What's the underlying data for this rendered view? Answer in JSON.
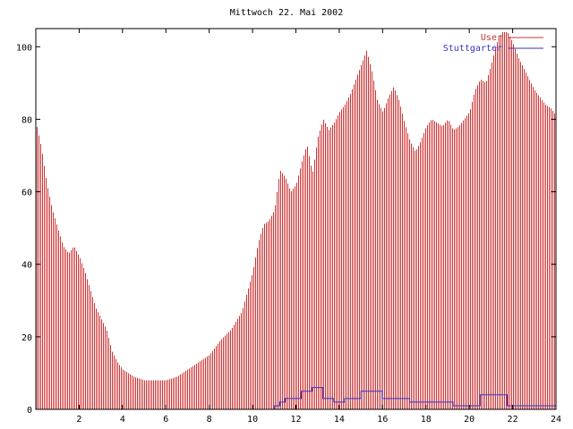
{
  "chart_data": {
    "type": "bar",
    "title": "Mittwoch 22. Mai 2002",
    "xlabel": "",
    "ylabel": "",
    "xlim": [
      0,
      24
    ],
    "ylim": [
      0,
      105
    ],
    "xticks": [
      2,
      4,
      6,
      8,
      10,
      12,
      14,
      16,
      18,
      20,
      22,
      24
    ],
    "yticks": [
      0,
      20,
      40,
      60,
      80,
      100
    ],
    "grid": false,
    "legend_placement": "top-right",
    "series": [
      {
        "name": "User",
        "type": "bar",
        "color": "#cc3333",
        "anchors": [
          [
            0.0,
            79
          ],
          [
            0.25,
            72
          ],
          [
            0.5,
            62
          ],
          [
            0.75,
            55
          ],
          [
            1.0,
            50
          ],
          [
            1.25,
            45
          ],
          [
            1.5,
            43
          ],
          [
            1.75,
            45
          ],
          [
            2.0,
            42
          ],
          [
            2.25,
            38
          ],
          [
            2.5,
            33
          ],
          [
            2.75,
            28
          ],
          [
            3.0,
            25
          ],
          [
            3.25,
            22
          ],
          [
            3.5,
            16
          ],
          [
            3.75,
            13
          ],
          [
            4.0,
            11
          ],
          [
            4.5,
            9
          ],
          [
            5.0,
            8
          ],
          [
            5.5,
            8
          ],
          [
            6.0,
            8
          ],
          [
            6.5,
            9
          ],
          [
            7.0,
            11
          ],
          [
            7.5,
            13
          ],
          [
            8.0,
            15
          ],
          [
            8.5,
            19
          ],
          [
            9.0,
            22
          ],
          [
            9.5,
            27
          ],
          [
            10.0,
            38
          ],
          [
            10.25,
            46
          ],
          [
            10.5,
            51
          ],
          [
            10.75,
            52
          ],
          [
            11.0,
            55
          ],
          [
            11.25,
            66
          ],
          [
            11.5,
            64
          ],
          [
            11.75,
            60
          ],
          [
            12.0,
            62
          ],
          [
            12.25,
            68
          ],
          [
            12.5,
            73
          ],
          [
            12.75,
            65
          ],
          [
            13.0,
            75
          ],
          [
            13.25,
            80
          ],
          [
            13.5,
            77
          ],
          [
            13.75,
            79
          ],
          [
            14.0,
            82
          ],
          [
            14.25,
            84
          ],
          [
            14.5,
            87
          ],
          [
            14.75,
            91
          ],
          [
            15.0,
            95
          ],
          [
            15.25,
            99
          ],
          [
            15.5,
            93
          ],
          [
            15.75,
            85
          ],
          [
            16.0,
            82
          ],
          [
            16.25,
            86
          ],
          [
            16.5,
            89
          ],
          [
            16.75,
            85
          ],
          [
            17.0,
            79
          ],
          [
            17.25,
            74
          ],
          [
            17.5,
            71
          ],
          [
            17.75,
            74
          ],
          [
            18.0,
            78
          ],
          [
            18.25,
            80
          ],
          [
            18.5,
            79
          ],
          [
            18.75,
            78
          ],
          [
            19.0,
            80
          ],
          [
            19.25,
            77
          ],
          [
            19.5,
            78
          ],
          [
            19.75,
            80
          ],
          [
            20.0,
            82
          ],
          [
            20.25,
            88
          ],
          [
            20.5,
            91
          ],
          [
            20.75,
            90
          ],
          [
            21.0,
            95
          ],
          [
            21.25,
            101
          ],
          [
            21.5,
            104
          ],
          [
            21.75,
            104
          ],
          [
            22.0,
            101
          ],
          [
            22.25,
            97
          ],
          [
            22.5,
            94
          ],
          [
            22.75,
            91
          ],
          [
            23.0,
            88
          ],
          [
            23.25,
            86
          ],
          [
            23.5,
            84
          ],
          [
            23.75,
            83
          ],
          [
            24.0,
            81
          ]
        ]
      },
      {
        "name": "Stuttgarter",
        "type": "step",
        "color": "#3333cc",
        "steps": [
          [
            0.0,
            0
          ],
          [
            11.0,
            1
          ],
          [
            11.25,
            2
          ],
          [
            11.5,
            3
          ],
          [
            12.25,
            5
          ],
          [
            12.75,
            6
          ],
          [
            13.25,
            3
          ],
          [
            13.75,
            2
          ],
          [
            14.25,
            3
          ],
          [
            15.0,
            5
          ],
          [
            16.0,
            3
          ],
          [
            17.25,
            2
          ],
          [
            18.75,
            2
          ],
          [
            19.25,
            1
          ],
          [
            20.5,
            4
          ],
          [
            21.75,
            1
          ],
          [
            24.0,
            1
          ]
        ]
      }
    ]
  }
}
